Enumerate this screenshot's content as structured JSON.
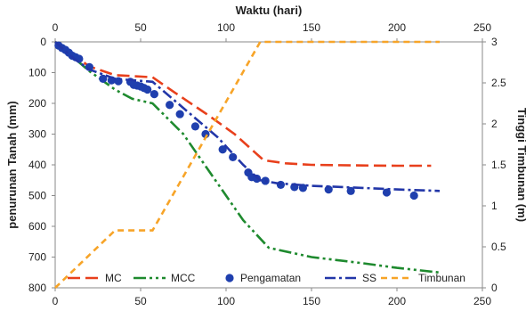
{
  "chart_data": {
    "type": "line",
    "title": "",
    "top_xlabel": "Waktu (hari)",
    "ylabel_left": "penurunan Tanah (mm)",
    "ylabel_right": "Tinggi Timbunan (m)",
    "xlim": [
      0,
      250
    ],
    "xticks": [
      0,
      50,
      100,
      150,
      200,
      250
    ],
    "ylim_left": [
      0,
      800
    ],
    "yticks_left": [
      0,
      100,
      200,
      300,
      400,
      500,
      600,
      700,
      800
    ],
    "ylim_right": [
      0,
      3
    ],
    "yticks_right": [
      0,
      0.5,
      1,
      1.5,
      2,
      2.5,
      3
    ],
    "left_axis_inverted": true,
    "grid": false,
    "legend_position": "bottom",
    "series": [
      {
        "name": "MC",
        "axis": "left",
        "style": "dashed",
        "color": "#e8401c",
        "x": [
          0,
          20,
          35,
          57,
          70,
          90,
          105,
          122,
          135,
          150,
          180,
          200,
          220
        ],
        "y": [
          0,
          80,
          108,
          115,
          165,
          240,
          300,
          385,
          395,
          400,
          402,
          403,
          403
        ]
      },
      {
        "name": "MCC",
        "axis": "left",
        "style": "dash-dot-dot",
        "color": "#1e8a2e",
        "x": [
          0,
          20,
          35,
          45,
          57,
          75,
          95,
          110,
          125,
          150,
          180,
          200,
          225
        ],
        "y": [
          0,
          95,
          155,
          185,
          200,
          300,
          460,
          580,
          670,
          700,
          720,
          735,
          750
        ]
      },
      {
        "name": "Pengamatan",
        "axis": "left",
        "style": "markers",
        "color": "#1f3fae",
        "x": [
          2,
          4,
          6,
          8,
          10,
          12,
          14,
          20,
          28,
          33,
          37,
          44,
          46,
          48,
          50,
          52,
          54,
          58,
          67,
          73,
          82,
          88,
          98,
          104,
          113,
          115,
          118,
          123,
          132,
          140,
          145,
          160,
          173,
          194,
          210
        ],
        "y": [
          12,
          20,
          26,
          35,
          45,
          50,
          55,
          82,
          120,
          125,
          128,
          130,
          140,
          142,
          145,
          150,
          155,
          170,
          205,
          235,
          275,
          300,
          350,
          375,
          425,
          440,
          445,
          452,
          465,
          472,
          475,
          480,
          485,
          490,
          500
        ]
      },
      {
        "name": "SS",
        "axis": "left",
        "style": "dash-dot",
        "color": "#2236a8",
        "x": [
          0,
          10,
          20,
          35,
          57,
          75,
          95,
          110,
          120,
          130,
          150,
          180,
          200,
          225
        ],
        "y": [
          0,
          50,
          90,
          120,
          130,
          215,
          310,
          400,
          450,
          460,
          468,
          475,
          480,
          485
        ]
      },
      {
        "name": "Timbunan",
        "axis": "right",
        "style": "short-dashed",
        "color": "#f7a428",
        "x": [
          0,
          35,
          57,
          120,
          225
        ],
        "y": [
          0,
          0.7,
          0.7,
          3,
          3
        ]
      }
    ]
  }
}
